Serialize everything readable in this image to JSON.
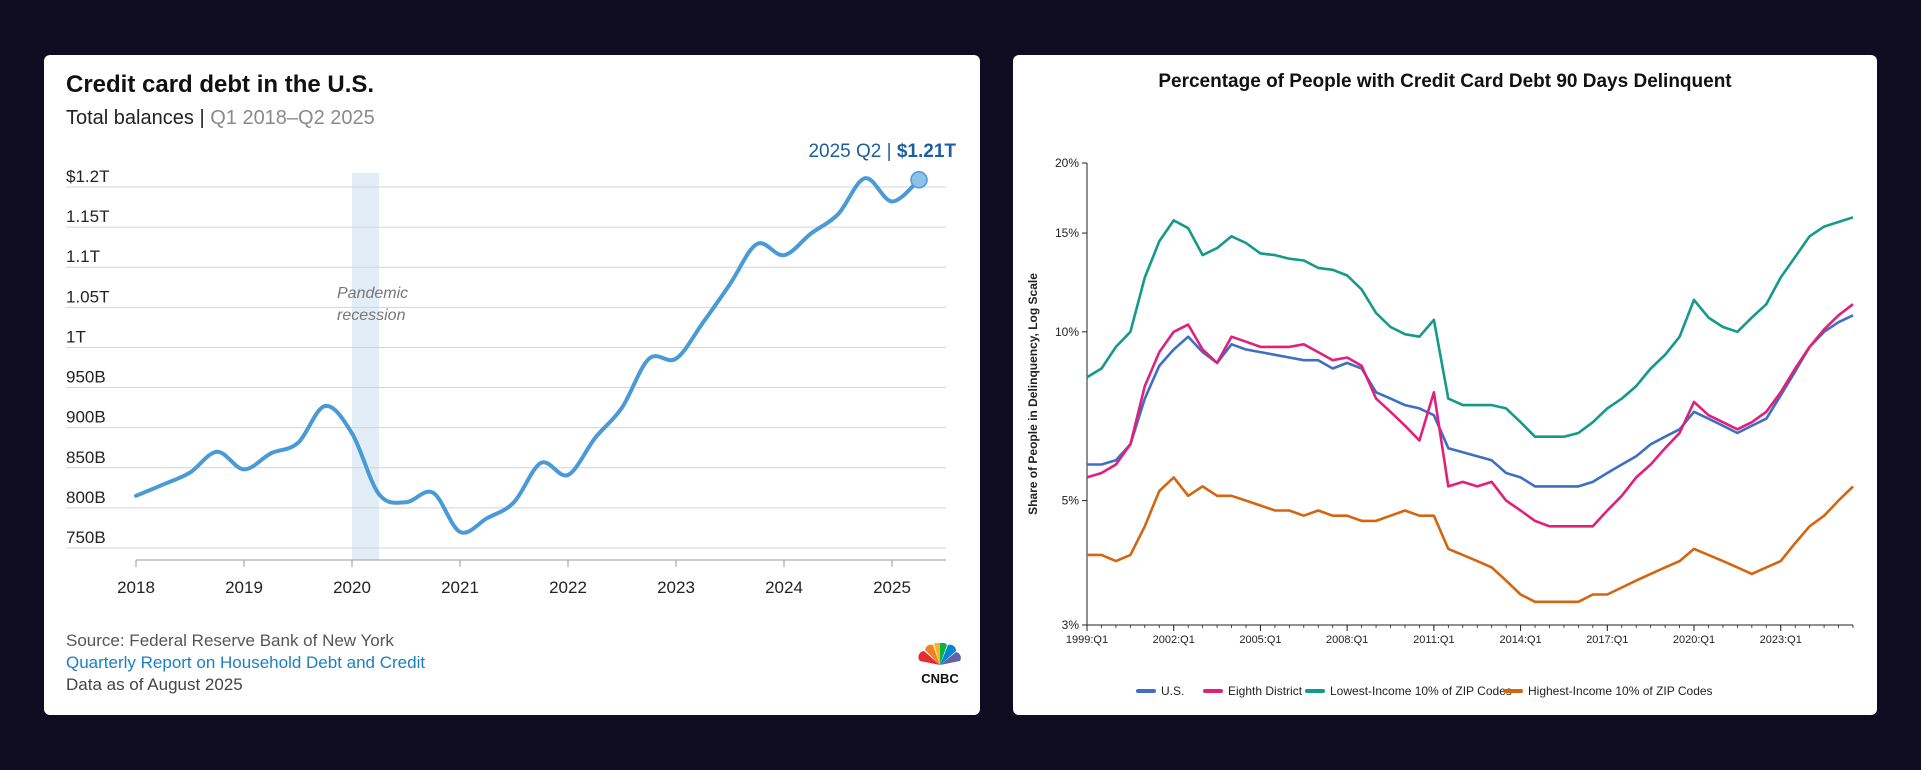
{
  "left": {
    "title": "Credit card debt in the U.S.",
    "subtitle": "Total balances",
    "subtitle_sep": "|",
    "subtitle_range": "Q1 2018–Q2 2025",
    "annotation_end_label": "2025 Q2",
    "annotation_end_sep": "|",
    "annotation_end_value": "$1.21T",
    "recession_label_line1": "Pandemic",
    "recession_label_line2": "recession",
    "source_line": "Source: Federal Reserve Bank of New York",
    "report_link": "Quarterly Report on Household Debt and Credit",
    "data_note": "Data as of August 2025",
    "logo_text": "CNBC"
  },
  "right": {
    "title": "Percentage of People with Credit Card Debt 90 Days Delinquent",
    "ylabel": "Share of People in Delinquency, Log Scale"
  },
  "colors": {
    "left_line": "#4a9ad6",
    "recession_band": "#e3edf8",
    "annotation": "#1c5f9e",
    "link": "#1a7fc4",
    "us": "#3f6fc4",
    "eighth": "#e0207a",
    "lowest": "#14998a",
    "highest": "#d5650f"
  },
  "chart_data": [
    {
      "type": "line",
      "title": "Credit card debt in the U.S.",
      "subtitle": "Total balances | Q1 2018–Q2 2025",
      "xlabel": "",
      "ylabel": "",
      "x_ticks": [
        "2018",
        "2019",
        "2020",
        "2021",
        "2022",
        "2023",
        "2024",
        "2025"
      ],
      "y_ticks": [
        "$1.2T",
        "1.15T",
        "1.1T",
        "1.05T",
        "1T",
        "950B",
        "900B",
        "850B",
        "800B",
        "750B"
      ],
      "y_tick_values": [
        1200,
        1150,
        1100,
        1050,
        1000,
        950,
        900,
        850,
        800,
        750
      ],
      "ylim": [
        735,
        1210
      ],
      "xlim": [
        2018,
        2025.5
      ],
      "grid": true,
      "shaded_region": {
        "label": "Pandemic recession",
        "x": [
          2020.0,
          2020.25
        ]
      },
      "series": [
        {
          "unit": "billions USD",
          "x": [
            2018.0,
            2018.25,
            2018.5,
            2018.75,
            2019.0,
            2019.25,
            2019.5,
            2019.75,
            2020.0,
            2020.25,
            2020.5,
            2020.75,
            2021.0,
            2021.25,
            2021.5,
            2021.75,
            2022.0,
            2022.25,
            2022.5,
            2022.75,
            2023.0,
            2023.25,
            2023.5,
            2023.75,
            2024.0,
            2024.25,
            2024.5,
            2024.75,
            2025.0,
            2025.25
          ],
          "values": [
            815,
            829,
            844,
            870,
            848,
            868,
            881,
            927,
            893,
            817,
            807,
            819,
            770,
            787,
            807,
            856,
            841,
            887,
            925,
            986,
            986,
            1031,
            1079,
            1129,
            1115,
            1142,
            1166,
            1211,
            1182,
            1209
          ]
        }
      ]
    },
    {
      "type": "line",
      "title": "Percentage of People with Credit Card Debt 90 Days Delinquent",
      "xlabel": "",
      "ylabel": "Share of People in Delinquency, Log Scale",
      "y_scale": "log",
      "y_ticks": [
        "20%",
        "15%",
        "10%",
        "5%",
        "3%"
      ],
      "y_tick_values": [
        20,
        15,
        10,
        5,
        3
      ],
      "ylim": [
        3,
        20
      ],
      "x_ticks": [
        "1999:Q1",
        "2002:Q1",
        "2005:Q1",
        "2008:Q1",
        "2011:Q1",
        "2014:Q1",
        "2017:Q1",
        "2020:Q1",
        "2023:Q1"
      ],
      "x_tick_values": [
        1999,
        2002,
        2005,
        2008,
        2011,
        2014,
        2017,
        2020,
        2023
      ],
      "xlim": [
        1999,
        2025.5
      ],
      "legend": "bottom",
      "x": [
        1999,
        1999.5,
        2000,
        2000.5,
        2001,
        2001.5,
        2002,
        2002.5,
        2003,
        2003.5,
        2004,
        2004.5,
        2005,
        2005.5,
        2006,
        2006.5,
        2007,
        2007.5,
        2008,
        2008.5,
        2009,
        2009.5,
        2010,
        2010.5,
        2011,
        2011.5,
        2012,
        2012.5,
        2013,
        2013.5,
        2014,
        2014.5,
        2015,
        2015.5,
        2016,
        2016.5,
        2017,
        2017.5,
        2018,
        2018.5,
        2019,
        2019.5,
        2020,
        2020.5,
        2021,
        2021.5,
        2022,
        2022.5,
        2023,
        2023.5,
        2024,
        2024.5,
        2025,
        2025.5
      ],
      "series": [
        {
          "name": "U.S.",
          "values": [
            5.8,
            5.8,
            5.9,
            6.3,
            7.6,
            8.7,
            9.3,
            9.8,
            9.2,
            8.8,
            9.5,
            9.3,
            9.2,
            9.1,
            9.0,
            8.9,
            8.9,
            8.6,
            8.8,
            8.6,
            7.8,
            7.6,
            7.4,
            7.3,
            7.1,
            6.2,
            6.1,
            6.0,
            5.9,
            5.6,
            5.5,
            5.3,
            5.3,
            5.3,
            5.3,
            5.4,
            5.6,
            5.8,
            6.0,
            6.3,
            6.5,
            6.7,
            7.2,
            7.0,
            6.8,
            6.6,
            6.8,
            7.0,
            7.7,
            8.5,
            9.4,
            10.0,
            10.4,
            10.7
          ]
        },
        {
          "name": "Eighth District",
          "values": [
            5.5,
            5.6,
            5.8,
            6.3,
            8.0,
            9.2,
            10.0,
            10.3,
            9.3,
            8.8,
            9.8,
            9.6,
            9.4,
            9.4,
            9.4,
            9.5,
            9.2,
            8.9,
            9.0,
            8.7,
            7.6,
            7.2,
            6.8,
            6.4,
            7.8,
            5.3,
            5.4,
            5.3,
            5.4,
            5.0,
            4.8,
            4.6,
            4.5,
            4.5,
            4.5,
            4.5,
            4.8,
            5.1,
            5.5,
            5.8,
            6.2,
            6.6,
            7.5,
            7.1,
            6.9,
            6.7,
            6.9,
            7.2,
            7.8,
            8.6,
            9.4,
            10.1,
            10.7,
            11.2
          ]
        },
        {
          "name": "Lowest-Income 10% of ZIP Codes",
          "values": [
            8.3,
            8.6,
            9.4,
            10.0,
            12.5,
            14.5,
            15.8,
            15.3,
            13.7,
            14.1,
            14.8,
            14.4,
            13.8,
            13.7,
            13.5,
            13.4,
            13.0,
            12.9,
            12.6,
            11.9,
            10.8,
            10.2,
            9.9,
            9.8,
            10.5,
            7.6,
            7.4,
            7.4,
            7.4,
            7.3,
            6.9,
            6.5,
            6.5,
            6.5,
            6.6,
            6.9,
            7.3,
            7.6,
            8.0,
            8.6,
            9.1,
            9.8,
            11.4,
            10.6,
            10.2,
            10.0,
            10.6,
            11.2,
            12.5,
            13.6,
            14.8,
            15.4,
            15.7,
            16.0
          ]
        },
        {
          "name": "Highest-Income 10% of ZIP Codes",
          "values": [
            4.0,
            4.0,
            3.9,
            4.0,
            4.5,
            5.2,
            5.5,
            5.1,
            5.3,
            5.1,
            5.1,
            5.0,
            4.9,
            4.8,
            4.8,
            4.7,
            4.8,
            4.7,
            4.7,
            4.6,
            4.6,
            4.7,
            4.8,
            4.7,
            4.7,
            4.1,
            4.0,
            3.9,
            3.8,
            3.6,
            3.4,
            3.3,
            3.3,
            3.3,
            3.3,
            3.4,
            3.4,
            3.5,
            3.6,
            3.7,
            3.8,
            3.9,
            4.1,
            4.0,
            3.9,
            3.8,
            3.7,
            3.8,
            3.9,
            4.2,
            4.5,
            4.7,
            5.0,
            5.3
          ]
        }
      ]
    }
  ]
}
